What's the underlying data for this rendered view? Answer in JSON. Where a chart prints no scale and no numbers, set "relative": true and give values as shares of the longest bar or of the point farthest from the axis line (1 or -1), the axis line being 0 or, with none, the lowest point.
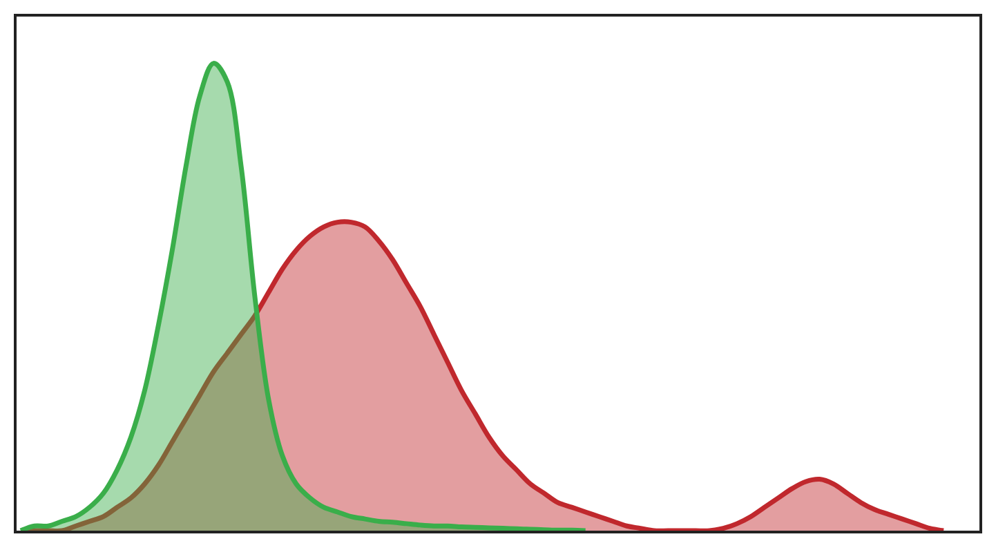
{
  "chart_data": {
    "type": "area",
    "relative": true,
    "categories": [
      null,
      null,
      null,
      null,
      null,
      null,
      null,
      null,
      null,
      null,
      null,
      null,
      null,
      null,
      null,
      null,
      null,
      null,
      null,
      null,
      null,
      null,
      null,
      null,
      null,
      null,
      null,
      null,
      null,
      null,
      null,
      null,
      null,
      null,
      null,
      null,
      null,
      null,
      null,
      null,
      null,
      null,
      null,
      null,
      null,
      null,
      null,
      null,
      null,
      null,
      null,
      null,
      null,
      null,
      null,
      null,
      null,
      null,
      null,
      null,
      null,
      null,
      null,
      null,
      null,
      null,
      null,
      null
    ],
    "series": [
      {
        "color": "#c0282d",
        "values": [
          0,
          0,
          0,
          0,
          0.01,
          0.02,
          0.03,
          0.05,
          0.07,
          0.1,
          0.14,
          0.19,
          0.24,
          0.29,
          0.34,
          0.38,
          0.42,
          0.46,
          0.51,
          0.56,
          0.6,
          0.63,
          0.65,
          0.66,
          0.66,
          0.65,
          0.62,
          0.58,
          0.53,
          0.48,
          0.42,
          0.36,
          0.3,
          0.25,
          0.2,
          0.16,
          0.13,
          0.1,
          0.08,
          0.06,
          0.05,
          0.04,
          0.03,
          0.02,
          0.01,
          0.005,
          0,
          0,
          0,
          0,
          0,
          0.005,
          0.015,
          0.03,
          0.05,
          0.07,
          0.09,
          0.105,
          0.11,
          0.1,
          0.08,
          0.06,
          0.045,
          0.035,
          0.025,
          0.015,
          0.005,
          0
        ]
      },
      {
        "color": "#3aae4a",
        "values": [
          0,
          0.01,
          0.01,
          0.02,
          0.03,
          0.05,
          0.08,
          0.13,
          0.2,
          0.3,
          0.44,
          0.6,
          0.78,
          0.93,
          1.0,
          0.96,
          0.78,
          0.5,
          0.28,
          0.16,
          0.1,
          0.07,
          0.05,
          0.04,
          0.03,
          0.025,
          0.02,
          0.018,
          0.015,
          0.012,
          0.01,
          0.01,
          0.008,
          0.007,
          0.006,
          0.005,
          0.004,
          0.003,
          0.002,
          0.001,
          0.001,
          0,
          null,
          null,
          null,
          null,
          null,
          null,
          null,
          null,
          null,
          null,
          null,
          null,
          null,
          null,
          null,
          null,
          null,
          null,
          null,
          null,
          null,
          null,
          null,
          null,
          null,
          null
        ]
      }
    ]
  }
}
